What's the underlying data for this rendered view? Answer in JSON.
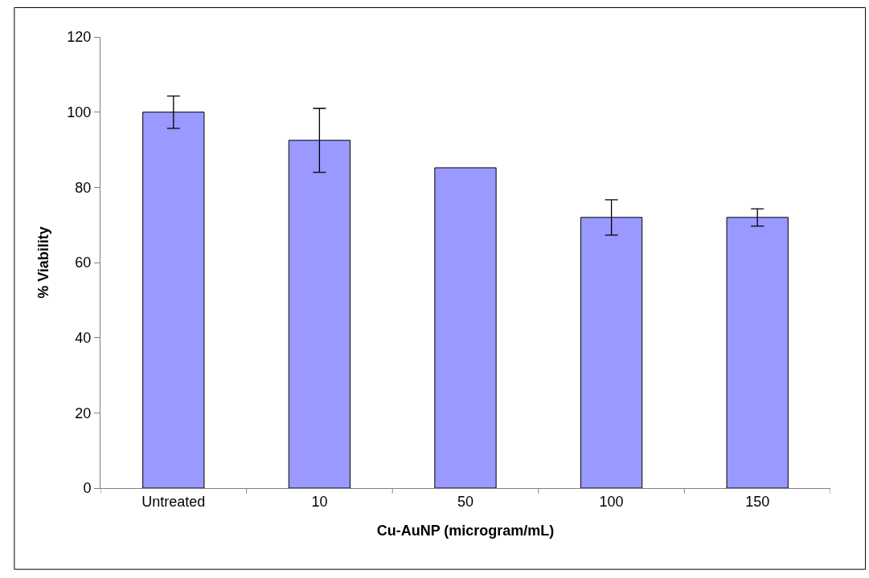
{
  "chart_data": {
    "type": "bar",
    "xlabel": "Cu-AuNP (microgram/mL)",
    "ylabel": "% Viability",
    "categories": [
      "Untreated",
      "10",
      "50",
      "100",
      "150"
    ],
    "values": [
      100,
      92.5,
      85.2,
      72.0,
      72.0
    ],
    "errors": [
      4.3,
      8.5,
      null,
      4.7,
      2.3
    ],
    "color": "#9999ff",
    "ylim": [
      0,
      120
    ],
    "yticks": [
      0,
      20,
      40,
      60,
      80,
      100,
      120
    ]
  }
}
